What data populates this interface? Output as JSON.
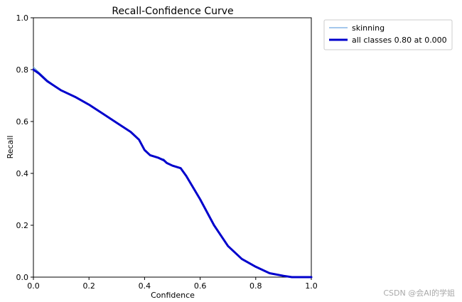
{
  "watermark": "CSDN @会AI的学姐",
  "chart_data": {
    "type": "line",
    "title": "Recall-Confidence Curve",
    "xlabel": "Confidence",
    "ylabel": "Recall",
    "xlim": [
      0,
      1
    ],
    "ylim": [
      0,
      1
    ],
    "xticks": [
      "0.0",
      "0.2",
      "0.4",
      "0.6",
      "0.8",
      "1.0"
    ],
    "yticks": [
      "0.0",
      "0.2",
      "0.4",
      "0.6",
      "0.8",
      "1.0"
    ],
    "grid": false,
    "legend_position": "outside-top-right",
    "series": [
      {
        "name": "skinning",
        "color": "#4a90d9",
        "x": [
          0.0,
          0.02,
          0.05,
          0.1,
          0.15,
          0.2,
          0.25,
          0.3,
          0.35,
          0.38,
          0.4,
          0.42,
          0.45,
          0.47,
          0.48,
          0.5,
          0.53,
          0.55,
          0.6,
          0.65,
          0.7,
          0.75,
          0.8,
          0.85,
          0.9,
          0.93,
          1.0
        ],
        "y": [
          0.81,
          0.79,
          0.76,
          0.72,
          0.695,
          0.665,
          0.63,
          0.595,
          0.56,
          0.53,
          0.49,
          0.47,
          0.46,
          0.455,
          0.44,
          0.43,
          0.42,
          0.39,
          0.3,
          0.2,
          0.12,
          0.07,
          0.04,
          0.015,
          0.005,
          0.0,
          0.0
        ]
      },
      {
        "name": "all classes 0.80 at 0.000",
        "color": "#0000cc",
        "x": [
          0.0,
          0.02,
          0.05,
          0.1,
          0.15,
          0.2,
          0.25,
          0.3,
          0.35,
          0.38,
          0.4,
          0.42,
          0.45,
          0.47,
          0.48,
          0.5,
          0.53,
          0.55,
          0.6,
          0.65,
          0.7,
          0.75,
          0.8,
          0.85,
          0.9,
          0.93,
          1.0
        ],
        "y": [
          0.8,
          0.785,
          0.755,
          0.72,
          0.695,
          0.665,
          0.63,
          0.595,
          0.56,
          0.53,
          0.49,
          0.47,
          0.46,
          0.45,
          0.44,
          0.43,
          0.42,
          0.39,
          0.3,
          0.2,
          0.12,
          0.07,
          0.04,
          0.015,
          0.005,
          0.0,
          0.0
        ]
      }
    ]
  }
}
